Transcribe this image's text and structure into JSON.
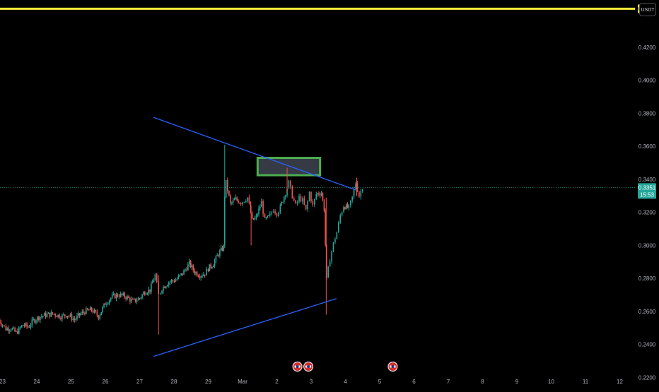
{
  "currency": "USDT",
  "colors": {
    "background": "#000000",
    "up": "#26a69a",
    "down": "#ef5350",
    "trendline": "#2962ff",
    "level": "#ffeb3b",
    "zone_border": "#4caf50",
    "zone_fill": "#363a45",
    "axis_text": "#b2b5be",
    "price_line": "#26a69a"
  },
  "chart_data": {
    "type": "candlestick",
    "y_axis": {
      "ylim": [
        0.2155,
        0.4486
      ],
      "ticks": [
        "0.4200",
        "0.4000",
        "0.3800",
        "0.3600",
        "0.3400",
        "0.3200",
        "0.3000",
        "0.2800",
        "0.2600",
        "0.2400",
        "0.2200"
      ]
    },
    "x_axis": {
      "tick_labels": [
        "23",
        "24",
        "25",
        "26",
        "27",
        "28",
        "29",
        "Mar",
        "2",
        "3",
        "4",
        "5",
        "6",
        "7",
        "8",
        "9",
        "10",
        "11",
        "12"
      ]
    },
    "horizontal_level": {
      "value": 0.4433,
      "label": "0.4433"
    },
    "current_price": {
      "value": 0.3351,
      "label": "0.3351",
      "countdown": "15:53"
    },
    "trendlines": [
      {
        "name": "resistance",
        "from": {
          "day": 27.41,
          "price": 0.3775
        },
        "to": {
          "day": 33.31,
          "price": 0.3335
        }
      },
      {
        "name": "support",
        "from": {
          "day": 27.41,
          "price": 0.2328
        },
        "to": {
          "day": 32.74,
          "price": 0.2678
        }
      }
    ],
    "zone": {
      "from_day": 30.44,
      "to_day": 32.26,
      "price_low": 0.3425,
      "price_high": 0.353
    },
    "events": [
      {
        "name": "event-1",
        "day": 31.6
      },
      {
        "name": "event-2",
        "day": 31.92
      },
      {
        "name": "event-3",
        "day": 34.38
      }
    ],
    "price_path": [
      [
        22.85,
        0.256
      ],
      [
        23.0,
        0.252
      ],
      [
        23.1,
        0.2495
      ],
      [
        23.25,
        0.25
      ],
      [
        23.4,
        0.247
      ],
      [
        23.6,
        0.252
      ],
      [
        23.75,
        0.2505
      ],
      [
        23.9,
        0.2545
      ],
      [
        24.1,
        0.257
      ],
      [
        24.3,
        0.258
      ],
      [
        24.5,
        0.2585
      ],
      [
        24.7,
        0.257
      ],
      [
        24.9,
        0.258
      ],
      [
        25.1,
        0.255
      ],
      [
        25.25,
        0.258
      ],
      [
        25.4,
        0.26
      ],
      [
        25.6,
        0.261
      ],
      [
        25.8,
        0.257
      ],
      [
        26.0,
        0.265
      ],
      [
        26.2,
        0.269
      ],
      [
        26.4,
        0.27
      ],
      [
        26.6,
        0.269
      ],
      [
        26.8,
        0.266
      ],
      [
        27.0,
        0.268
      ],
      [
        27.15,
        0.272
      ],
      [
        27.3,
        0.273
      ],
      [
        27.45,
        0.282
      ],
      [
        27.55,
        0.27
      ],
      [
        27.65,
        0.274
      ],
      [
        27.85,
        0.278
      ],
      [
        28.05,
        0.279
      ],
      [
        28.25,
        0.283
      ],
      [
        28.45,
        0.289
      ],
      [
        28.6,
        0.284
      ],
      [
        28.75,
        0.282
      ],
      [
        28.9,
        0.283
      ],
      [
        29.0,
        0.286
      ],
      [
        29.15,
        0.289
      ],
      [
        29.3,
        0.295
      ],
      [
        29.45,
        0.299
      ],
      [
        29.48,
        0.33
      ],
      [
        29.52,
        0.338
      ],
      [
        29.65,
        0.325
      ],
      [
        29.8,
        0.328
      ],
      [
        29.95,
        0.326
      ],
      [
        30.05,
        0.3275
      ],
      [
        30.15,
        0.329
      ],
      [
        30.28,
        0.315
      ],
      [
        30.4,
        0.317
      ],
      [
        30.55,
        0.326
      ],
      [
        30.65,
        0.315
      ],
      [
        30.8,
        0.318
      ],
      [
        30.9,
        0.322
      ],
      [
        31.0,
        0.3195
      ],
      [
        31.1,
        0.323
      ],
      [
        31.25,
        0.332
      ],
      [
        31.35,
        0.338
      ],
      [
        31.45,
        0.33
      ],
      [
        31.55,
        0.324
      ],
      [
        31.65,
        0.329
      ],
      [
        31.75,
        0.327
      ],
      [
        31.85,
        0.321
      ],
      [
        31.95,
        0.332
      ],
      [
        32.05,
        0.324
      ],
      [
        32.15,
        0.331
      ],
      [
        32.3,
        0.332
      ],
      [
        32.38,
        0.322
      ],
      [
        32.45,
        0.279
      ],
      [
        32.55,
        0.292
      ],
      [
        32.65,
        0.301
      ],
      [
        32.75,
        0.308
      ],
      [
        32.85,
        0.318
      ],
      [
        32.95,
        0.324
      ],
      [
        33.1,
        0.3225
      ],
      [
        33.2,
        0.329
      ],
      [
        33.3,
        0.338
      ],
      [
        33.4,
        0.33
      ],
      [
        33.5,
        0.3355
      ]
    ]
  }
}
